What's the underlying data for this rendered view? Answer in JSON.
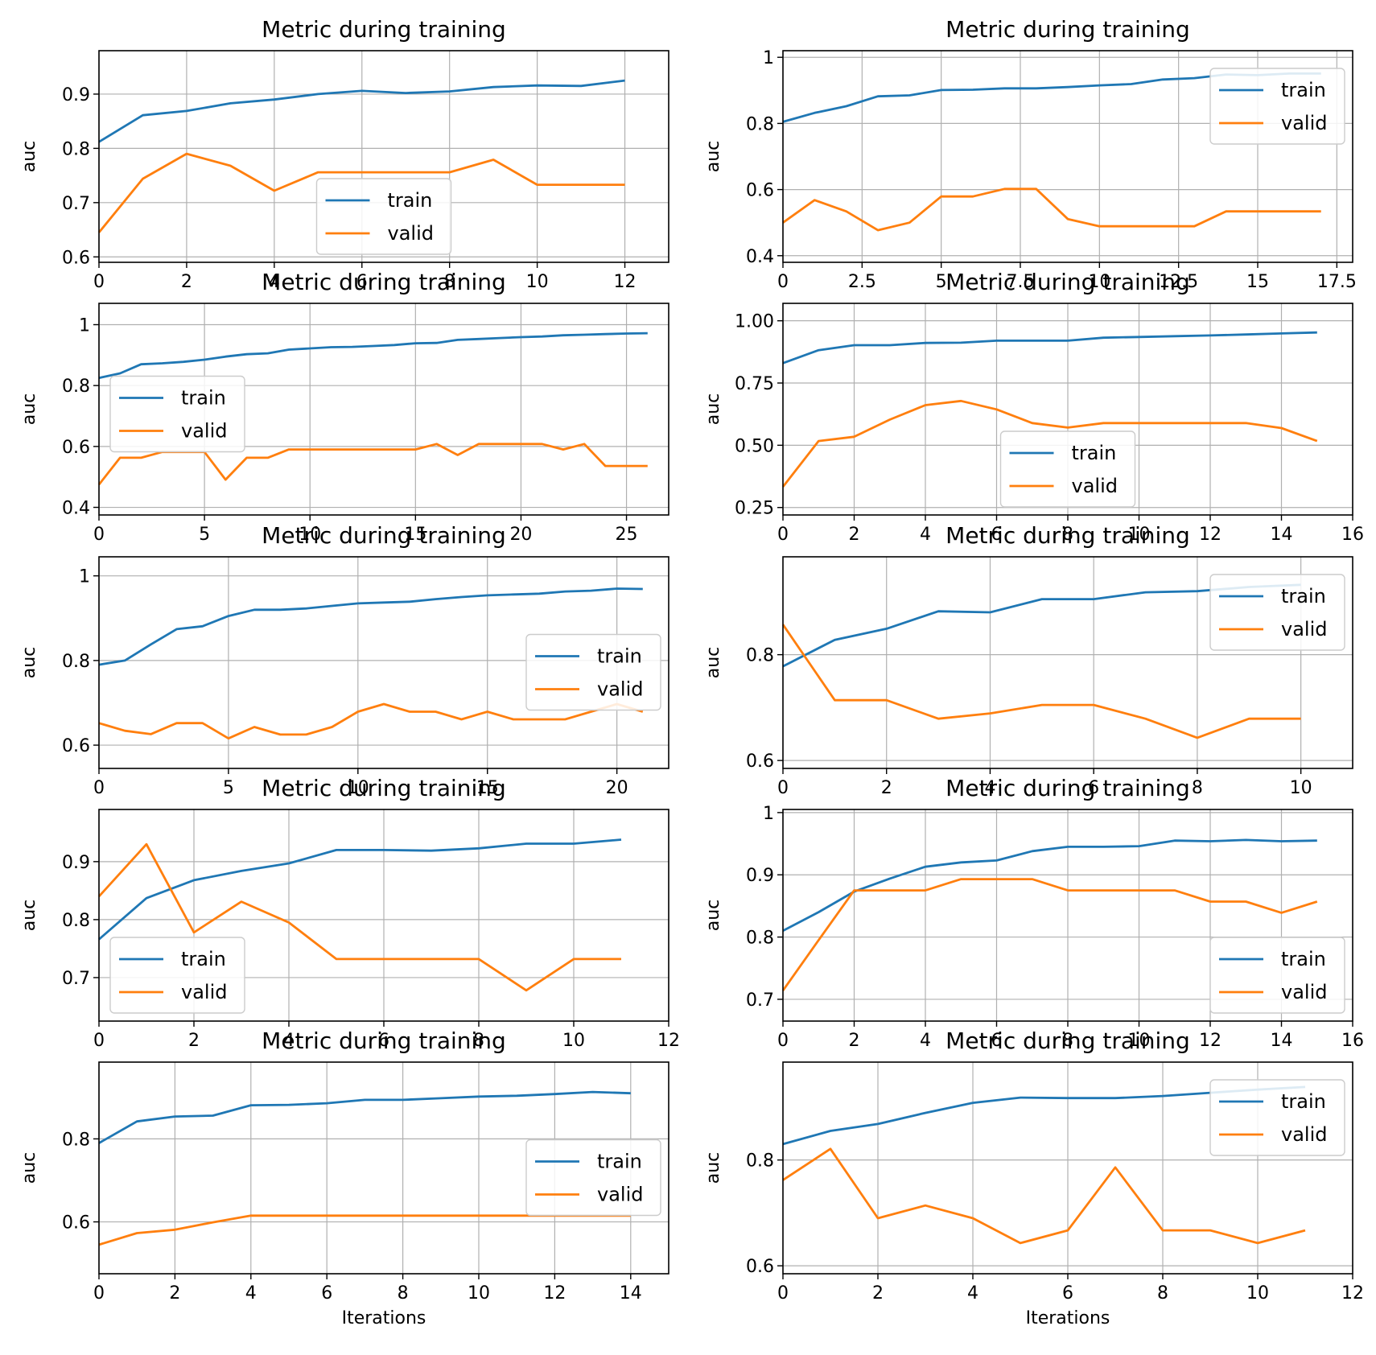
{
  "colors": {
    "train": "#1f77b4",
    "valid": "#ff7f0e",
    "grid": "#b0b0b0"
  },
  "chart_data": [
    {
      "type": "line",
      "title": "Metric during training",
      "xlabel": "",
      "ylabel": "auc",
      "xlim": [
        0,
        13
      ],
      "ylim": [
        0.59,
        0.98
      ],
      "xticks": [
        0,
        2,
        4,
        6,
        8,
        10,
        12
      ],
      "yticks": [
        0.6,
        0.7,
        0.8,
        0.9
      ],
      "grid": true,
      "legend_position": "lower center",
      "series": [
        {
          "name": "train",
          "x": [
            0,
            1,
            2,
            3,
            4,
            5,
            6,
            7,
            8,
            9,
            10,
            11,
            12
          ],
          "y": [
            0.812,
            0.861,
            0.869,
            0.883,
            0.89,
            0.9,
            0.906,
            0.902,
            0.905,
            0.913,
            0.916,
            0.915,
            0.925
          ]
        },
        {
          "name": "valid",
          "x": [
            0,
            1,
            2,
            3,
            4,
            5,
            6,
            7,
            8,
            9,
            10,
            11,
            12
          ],
          "y": [
            0.645,
            0.744,
            0.79,
            0.768,
            0.722,
            0.756,
            0.756,
            0.756,
            0.756,
            0.779,
            0.733,
            0.733,
            0.733
          ]
        }
      ]
    },
    {
      "type": "line",
      "title": "Metric during training",
      "xlabel": "",
      "ylabel": "auc",
      "xlim": [
        0,
        18
      ],
      "ylim": [
        0.38,
        1.02
      ],
      "xticks": [
        0,
        2.5,
        5,
        7.5,
        10,
        12.5,
        15,
        17.5
      ],
      "yticks": [
        0.4,
        0.6,
        0.8,
        1.0
      ],
      "grid": true,
      "legend_position": "upper right",
      "series": [
        {
          "name": "train",
          "x": [
            0,
            1,
            2,
            3,
            4,
            5,
            6,
            7,
            8,
            9,
            10,
            11,
            12,
            13,
            14,
            15,
            16,
            17
          ],
          "y": [
            0.805,
            0.832,
            0.852,
            0.882,
            0.885,
            0.901,
            0.902,
            0.906,
            0.906,
            0.91,
            0.915,
            0.919,
            0.933,
            0.937,
            0.948,
            0.946,
            0.951,
            0.951
          ]
        },
        {
          "name": "valid",
          "x": [
            0,
            1,
            2,
            3,
            4,
            5,
            6,
            7,
            8,
            9,
            10,
            11,
            12,
            13,
            14,
            15,
            16,
            17
          ],
          "y": [
            0.5,
            0.568,
            0.534,
            0.477,
            0.5,
            0.579,
            0.579,
            0.602,
            0.602,
            0.511,
            0.489,
            0.489,
            0.489,
            0.489,
            0.534,
            0.534,
            0.534,
            0.534
          ]
        }
      ]
    },
    {
      "type": "line",
      "title": "Metric during training",
      "xlabel": "",
      "ylabel": "auc",
      "xlim": [
        0,
        27
      ],
      "ylim": [
        0.375,
        1.07
      ],
      "xticks": [
        0,
        5,
        10,
        15,
        20,
        25
      ],
      "yticks": [
        0.4,
        0.6,
        0.8,
        1.0
      ],
      "grid": true,
      "legend_position": "center left",
      "series": [
        {
          "name": "train",
          "x": [
            0,
            1,
            2,
            3,
            4,
            5,
            6,
            7,
            8,
            9,
            10,
            11,
            12,
            13,
            14,
            15,
            16,
            17,
            18,
            19,
            20,
            21,
            22,
            23,
            24,
            25,
            26
          ],
          "y": [
            0.825,
            0.84,
            0.87,
            0.873,
            0.878,
            0.885,
            0.895,
            0.903,
            0.906,
            0.918,
            0.922,
            0.926,
            0.927,
            0.93,
            0.933,
            0.939,
            0.94,
            0.95,
            0.953,
            0.956,
            0.959,
            0.961,
            0.965,
            0.967,
            0.969,
            0.971,
            0.972
          ]
        },
        {
          "name": "valid",
          "x": [
            0,
            1,
            2,
            3,
            4,
            5,
            6,
            7,
            8,
            9,
            10,
            11,
            12,
            13,
            14,
            15,
            16,
            17,
            18,
            19,
            20,
            21,
            22,
            23,
            24,
            25,
            26
          ],
          "y": [
            0.475,
            0.563,
            0.563,
            0.582,
            0.582,
            0.582,
            0.491,
            0.563,
            0.563,
            0.59,
            0.59,
            0.59,
            0.59,
            0.59,
            0.59,
            0.59,
            0.608,
            0.572,
            0.608,
            0.608,
            0.608,
            0.608,
            0.59,
            0.608,
            0.536,
            0.536,
            0.536
          ]
        }
      ]
    },
    {
      "type": "line",
      "title": "Metric during training",
      "xlabel": "",
      "ylabel": "auc",
      "xlim": [
        0,
        16
      ],
      "ylim": [
        0.22,
        1.07
      ],
      "xticks": [
        0,
        2,
        4,
        6,
        8,
        10,
        12,
        14,
        16
      ],
      "yticks": [
        0.25,
        0.5,
        0.75,
        1.0
      ],
      "ytick_labels": [
        "0.25",
        "0.50",
        "0.75",
        "1.00"
      ],
      "grid": true,
      "legend_position": "lower center",
      "series": [
        {
          "name": "train",
          "x": [
            0,
            1,
            2,
            3,
            4,
            5,
            6,
            7,
            8,
            9,
            10,
            11,
            12,
            13,
            14,
            15
          ],
          "y": [
            0.83,
            0.882,
            0.902,
            0.902,
            0.911,
            0.912,
            0.92,
            0.92,
            0.92,
            0.932,
            0.935,
            0.938,
            0.941,
            0.945,
            0.949,
            0.953
          ]
        },
        {
          "name": "valid",
          "x": [
            0,
            1,
            2,
            3,
            4,
            5,
            6,
            7,
            8,
            9,
            10,
            11,
            12,
            13,
            14,
            15
          ],
          "y": [
            0.333,
            0.517,
            0.534,
            0.603,
            0.661,
            0.678,
            0.644,
            0.589,
            0.571,
            0.589,
            0.589,
            0.589,
            0.589,
            0.589,
            0.569,
            0.517
          ]
        }
      ]
    },
    {
      "type": "line",
      "title": "Metric during training",
      "xlabel": "",
      "ylabel": "auc",
      "xlim": [
        0,
        22
      ],
      "ylim": [
        0.545,
        1.045
      ],
      "xticks": [
        0,
        5,
        10,
        15,
        20
      ],
      "yticks": [
        0.6,
        0.8,
        1.0
      ],
      "grid": true,
      "legend_position": "center right",
      "series": [
        {
          "name": "train",
          "x": [
            0,
            1,
            2,
            3,
            4,
            5,
            6,
            7,
            8,
            9,
            10,
            11,
            12,
            13,
            14,
            15,
            16,
            17,
            18,
            19,
            20,
            21
          ],
          "y": [
            0.79,
            0.8,
            0.838,
            0.874,
            0.881,
            0.905,
            0.92,
            0.92,
            0.923,
            0.929,
            0.935,
            0.937,
            0.939,
            0.945,
            0.95,
            0.954,
            0.956,
            0.958,
            0.963,
            0.965,
            0.97,
            0.969
          ]
        },
        {
          "name": "valid",
          "x": [
            0,
            1,
            2,
            3,
            4,
            5,
            6,
            7,
            8,
            9,
            10,
            11,
            12,
            13,
            14,
            15,
            16,
            17,
            18,
            19,
            20,
            21
          ],
          "y": [
            0.652,
            0.634,
            0.626,
            0.652,
            0.652,
            0.616,
            0.643,
            0.625,
            0.625,
            0.643,
            0.679,
            0.697,
            0.679,
            0.679,
            0.661,
            0.679,
            0.661,
            0.661,
            0.661,
            0.679,
            0.697,
            0.679
          ]
        }
      ]
    },
    {
      "type": "line",
      "title": "Metric during training",
      "xlabel": "",
      "ylabel": "auc",
      "xlim": [
        0,
        11
      ],
      "ylim": [
        0.585,
        0.985
      ],
      "xticks": [
        0,
        2,
        4,
        6,
        8,
        10
      ],
      "yticks": [
        0.6,
        0.8
      ],
      "grid": true,
      "legend_position": "upper right",
      "series": [
        {
          "name": "train",
          "x": [
            0,
            1,
            2,
            3,
            4,
            5,
            6,
            7,
            8,
            9,
            10
          ],
          "y": [
            0.778,
            0.828,
            0.849,
            0.882,
            0.88,
            0.905,
            0.905,
            0.918,
            0.92,
            0.928,
            0.932
          ]
        },
        {
          "name": "valid",
          "x": [
            0,
            1,
            2,
            3,
            4,
            5,
            6,
            7,
            8,
            9,
            10
          ],
          "y": [
            0.857,
            0.714,
            0.714,
            0.679,
            0.689,
            0.705,
            0.705,
            0.679,
            0.643,
            0.679,
            0.679
          ]
        }
      ]
    },
    {
      "type": "line",
      "title": "Metric during training",
      "xlabel": "",
      "ylabel": "auc",
      "xlim": [
        0,
        12
      ],
      "ylim": [
        0.625,
        0.99
      ],
      "xticks": [
        0,
        2,
        4,
        6,
        8,
        10,
        12
      ],
      "yticks": [
        0.7,
        0.8,
        0.9
      ],
      "grid": true,
      "legend_position": "lower left",
      "series": [
        {
          "name": "train",
          "x": [
            0,
            1,
            2,
            3,
            4,
            5,
            6,
            7,
            8,
            9,
            10,
            11
          ],
          "y": [
            0.766,
            0.837,
            0.868,
            0.884,
            0.897,
            0.92,
            0.92,
            0.919,
            0.923,
            0.931,
            0.931,
            0.938
          ]
        },
        {
          "name": "valid",
          "x": [
            0,
            1,
            2,
            3,
            4,
            5,
            6,
            7,
            8,
            9,
            10,
            11
          ],
          "y": [
            0.84,
            0.93,
            0.778,
            0.831,
            0.795,
            0.732,
            0.732,
            0.732,
            0.732,
            0.678,
            0.732,
            0.732
          ]
        }
      ]
    },
    {
      "type": "line",
      "title": "Metric during training",
      "xlabel": "",
      "ylabel": "auc",
      "xlim": [
        0,
        16
      ],
      "ylim": [
        0.665,
        1.005
      ],
      "xticks": [
        0,
        2,
        4,
        6,
        8,
        10,
        12,
        14,
        16
      ],
      "yticks": [
        0.7,
        0.8,
        0.9,
        1.0
      ],
      "grid": true,
      "legend_position": "lower right",
      "series": [
        {
          "name": "train",
          "x": [
            0,
            1,
            2,
            3,
            4,
            5,
            6,
            7,
            8,
            9,
            10,
            11,
            12,
            13,
            14,
            15
          ],
          "y": [
            0.81,
            0.84,
            0.873,
            0.894,
            0.913,
            0.92,
            0.923,
            0.938,
            0.945,
            0.945,
            0.946,
            0.955,
            0.954,
            0.956,
            0.954,
            0.955
          ]
        },
        {
          "name": "valid",
          "x": [
            0,
            1,
            2,
            3,
            4,
            5,
            6,
            7,
            8,
            9,
            10,
            11,
            12,
            13,
            14,
            15
          ],
          "y": [
            0.714,
            0.795,
            0.875,
            0.875,
            0.875,
            0.893,
            0.893,
            0.893,
            0.875,
            0.875,
            0.875,
            0.875,
            0.857,
            0.857,
            0.839,
            0.857
          ]
        }
      ]
    },
    {
      "type": "line",
      "title": "Metric during training",
      "xlabel": "Iterations",
      "ylabel": "auc",
      "xlim": [
        0,
        15
      ],
      "ylim": [
        0.475,
        0.985
      ],
      "xticks": [
        0,
        2,
        4,
        6,
        8,
        10,
        12,
        14
      ],
      "yticks": [
        0.6,
        0.8
      ],
      "grid": true,
      "legend_position": "center right",
      "series": [
        {
          "name": "train",
          "x": [
            0,
            1,
            2,
            3,
            4,
            5,
            6,
            7,
            8,
            9,
            10,
            11,
            12,
            13,
            14
          ],
          "y": [
            0.79,
            0.842,
            0.854,
            0.856,
            0.881,
            0.882,
            0.886,
            0.894,
            0.894,
            0.898,
            0.902,
            0.904,
            0.908,
            0.913,
            0.91
          ]
        },
        {
          "name": "valid",
          "x": [
            0,
            1,
            2,
            3,
            4,
            5,
            6,
            7,
            8,
            9,
            10,
            11,
            12,
            13,
            14
          ],
          "y": [
            0.545,
            0.573,
            0.581,
            0.599,
            0.615,
            0.615,
            0.615,
            0.615,
            0.615,
            0.615,
            0.615,
            0.615,
            0.615,
            0.615,
            0.615
          ]
        }
      ]
    },
    {
      "type": "line",
      "title": "Metric during training",
      "xlabel": "Iterations",
      "ylabel": "auc",
      "xlim": [
        0,
        12
      ],
      "ylim": [
        0.585,
        0.985
      ],
      "xticks": [
        0,
        2,
        4,
        6,
        8,
        10,
        12
      ],
      "yticks": [
        0.6,
        0.8
      ],
      "grid": true,
      "legend_position": "upper right",
      "series": [
        {
          "name": "train",
          "x": [
            0,
            1,
            2,
            3,
            4,
            5,
            6,
            7,
            8,
            9,
            10,
            11
          ],
          "y": [
            0.83,
            0.855,
            0.868,
            0.889,
            0.908,
            0.918,
            0.917,
            0.917,
            0.921,
            0.927,
            0.933,
            0.938
          ]
        },
        {
          "name": "valid",
          "x": [
            0,
            1,
            2,
            3,
            4,
            5,
            6,
            7,
            8,
            9,
            10,
            11
          ],
          "y": [
            0.762,
            0.821,
            0.69,
            0.714,
            0.69,
            0.643,
            0.667,
            0.786,
            0.667,
            0.667,
            0.643,
            0.667
          ]
        }
      ]
    }
  ]
}
